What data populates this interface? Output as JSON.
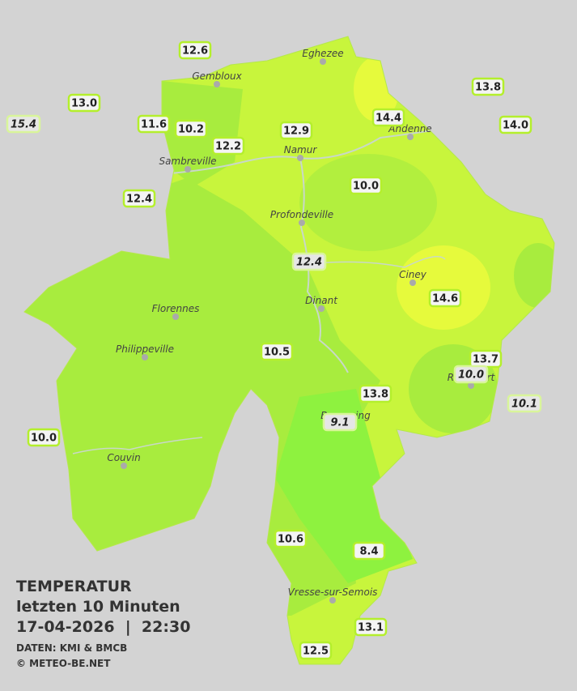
{
  "legend": {
    "title": "TEMPERATUR",
    "subtitle": "letzten 10 Minuten",
    "datetime": "17-04-2026  |  22:30",
    "source": "DATEN: KMI & BMCB",
    "copyright": "© METEO-BE.NET"
  },
  "cities": [
    "Eghezee",
    "Gembloux",
    "Andenne",
    "Namur",
    "Sambreville",
    "Profondeville",
    "Ciney",
    "Dinant",
    "Florennes",
    "Philippeville",
    "Rochefort",
    "Beauraing",
    "Couvin",
    "Vresse-sur-Semois"
  ],
  "stations": [
    {
      "reading": "12.6"
    },
    {
      "reading": "13.0"
    },
    {
      "reading": "15.4",
      "italic": true
    },
    {
      "reading": "11.6"
    },
    {
      "reading": "10.2"
    },
    {
      "reading": "12.2"
    },
    {
      "reading": "12.9"
    },
    {
      "reading": "13.8"
    },
    {
      "reading": "14.4"
    },
    {
      "reading": "14.0"
    },
    {
      "reading": "12.4"
    },
    {
      "reading": "10.0"
    },
    {
      "reading": "12.4",
      "italic": true
    },
    {
      "reading": "14.6"
    },
    {
      "reading": "10.5"
    },
    {
      "reading": "13.7"
    },
    {
      "reading": "10.0",
      "italic": true
    },
    {
      "reading": "10.1",
      "italic": true
    },
    {
      "reading": "13.8"
    },
    {
      "reading": "9.1",
      "italic": true
    },
    {
      "reading": "10.0"
    },
    {
      "reading": "10.6"
    },
    {
      "reading": "8.4"
    },
    {
      "reading": "13.1"
    },
    {
      "reading": "12.5"
    }
  ]
}
